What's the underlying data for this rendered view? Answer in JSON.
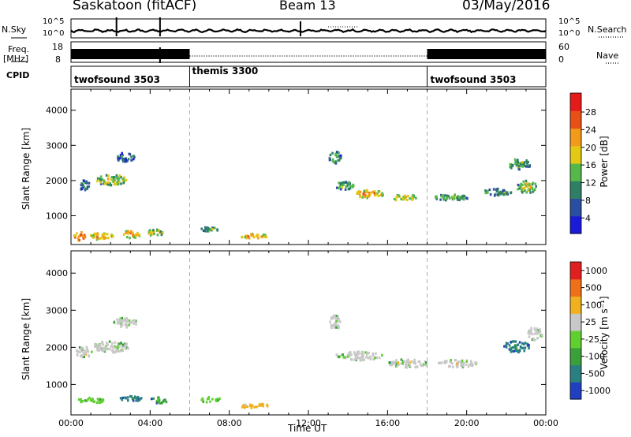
{
  "header": {
    "station": "Saskatoon (fitACF)",
    "beam": "Beam 13",
    "date": "03/May/2016"
  },
  "info_panels": {
    "nsky_label": "N.Sky",
    "nsky_ticks": [
      "10^5",
      "10^0"
    ],
    "nsearch_label": "N.Search",
    "nsearch_ticks": [
      "10^5",
      "10^0"
    ],
    "freq_label_1": "Freq.",
    "freq_label_2": "[MHz]",
    "freq_ticks": [
      "18",
      "8"
    ],
    "nave_label": "Nave",
    "nave_ticks": [
      "60",
      "0"
    ],
    "cpid_label": "CPID"
  },
  "chart_data": [
    {
      "type": "heatmap",
      "title": "",
      "xlabel": "",
      "ylabel": "Slant Range [km]",
      "xlim": [
        "00:00",
        "24:00"
      ],
      "ylim": [
        180,
        4600
      ],
      "ytick_labels": [
        "1000",
        "2000",
        "3000",
        "4000"
      ],
      "colorbar_label": "Power [dB]",
      "colorbar_ticks": [
        "28",
        "24",
        "20",
        "16",
        "12",
        "8",
        "4"
      ],
      "colorbar_colors": [
        "#1a1ad8",
        "#2a4ea0",
        "#2f7f66",
        "#54b84a",
        "#e3c814",
        "#f29a1a",
        "#e85018",
        "#e51a1a"
      ],
      "blobs": [
        {
          "t": 0.4,
          "r": 450,
          "dt": 0.6,
          "dr": 250,
          "lvl": 6
        },
        {
          "t": 1.5,
          "r": 450,
          "dt": 1.2,
          "dr": 200,
          "lvl": 5
        },
        {
          "t": 3.0,
          "r": 500,
          "dt": 1.0,
          "dr": 220,
          "lvl": 5
        },
        {
          "t": 4.2,
          "r": 550,
          "dt": 0.8,
          "dr": 200,
          "lvl": 4
        },
        {
          "t": 0.6,
          "r": 1900,
          "dt": 0.6,
          "dr": 300,
          "lvl": 2
        },
        {
          "t": 2.0,
          "r": 2050,
          "dt": 1.6,
          "dr": 300,
          "lvl": 4
        },
        {
          "t": 2.7,
          "r": 2700,
          "dt": 1.0,
          "dr": 250,
          "lvl": 2
        },
        {
          "t": 7.0,
          "r": 650,
          "dt": 1.0,
          "dr": 150,
          "lvl": 3
        },
        {
          "t": 9.2,
          "r": 450,
          "dt": 1.4,
          "dr": 130,
          "lvl": 5
        },
        {
          "t": 13.3,
          "r": 2700,
          "dt": 0.6,
          "dr": 400,
          "lvl": 3
        },
        {
          "t": 13.8,
          "r": 1900,
          "dt": 1.0,
          "dr": 250,
          "lvl": 3
        },
        {
          "t": 15.0,
          "r": 1650,
          "dt": 1.6,
          "dr": 220,
          "lvl": 5
        },
        {
          "t": 16.8,
          "r": 1550,
          "dt": 1.2,
          "dr": 200,
          "lvl": 4
        },
        {
          "t": 19.2,
          "r": 1550,
          "dt": 1.8,
          "dr": 180,
          "lvl": 3
        },
        {
          "t": 21.5,
          "r": 1700,
          "dt": 1.4,
          "dr": 200,
          "lvl": 3
        },
        {
          "t": 23.0,
          "r": 1850,
          "dt": 1.0,
          "dr": 350,
          "lvl": 4
        },
        {
          "t": 22.6,
          "r": 2500,
          "dt": 1.2,
          "dr": 300,
          "lvl": 3
        }
      ]
    },
    {
      "type": "heatmap",
      "title": "",
      "xlabel": "Time UT",
      "ylabel": "Slant Range [km]",
      "xlim": [
        "00:00",
        "24:00"
      ],
      "ylim": [
        180,
        4600
      ],
      "xtick_labels": [
        "00:00",
        "04:00",
        "08:00",
        "12:00",
        "16:00",
        "20:00",
        "00:00"
      ],
      "ytick_labels": [
        "1000",
        "2000",
        "3000",
        "4000"
      ],
      "colorbar_label": "Velocity [m s⁻¹]",
      "colorbar_ticks": [
        "1000",
        "500",
        "100",
        "25",
        "-25",
        "-100",
        "-500",
        "-1000"
      ],
      "colorbar_colors": [
        "#2040c0",
        "#2a8080",
        "#3aa03a",
        "#60d030",
        "#c8c8c8",
        "#f0b020",
        "#f07018",
        "#e02020"
      ],
      "blobs": [
        {
          "t": 0.6,
          "r": 1900,
          "dt": 0.8,
          "dr": 300,
          "lvl": 4
        },
        {
          "t": 2.0,
          "r": 2050,
          "dt": 1.8,
          "dr": 320,
          "lvl": 4
        },
        {
          "t": 2.7,
          "r": 2700,
          "dt": 1.2,
          "dr": 260,
          "lvl": 4
        },
        {
          "t": 1.0,
          "r": 600,
          "dt": 1.4,
          "dr": 150,
          "lvl": 3
        },
        {
          "t": 3.0,
          "r": 650,
          "dt": 1.2,
          "dr": 150,
          "lvl": 1
        },
        {
          "t": 4.4,
          "r": 600,
          "dt": 1.0,
          "dr": 170,
          "lvl": 2
        },
        {
          "t": 7.0,
          "r": 620,
          "dt": 1.2,
          "dr": 140,
          "lvl": 3
        },
        {
          "t": 9.2,
          "r": 450,
          "dt": 1.6,
          "dr": 130,
          "lvl": 5
        },
        {
          "t": 13.3,
          "r": 2700,
          "dt": 0.6,
          "dr": 400,
          "lvl": 4
        },
        {
          "t": 14.5,
          "r": 1800,
          "dt": 2.4,
          "dr": 250,
          "lvl": 4
        },
        {
          "t": 17.0,
          "r": 1600,
          "dt": 2.0,
          "dr": 220,
          "lvl": 4
        },
        {
          "t": 19.5,
          "r": 1600,
          "dt": 2.0,
          "dr": 200,
          "lvl": 4
        },
        {
          "t": 22.5,
          "r": 2050,
          "dt": 1.4,
          "dr": 300,
          "lvl": 1
        },
        {
          "t": 23.4,
          "r": 2400,
          "dt": 0.8,
          "dr": 350,
          "lvl": 4
        }
      ]
    }
  ]
}
